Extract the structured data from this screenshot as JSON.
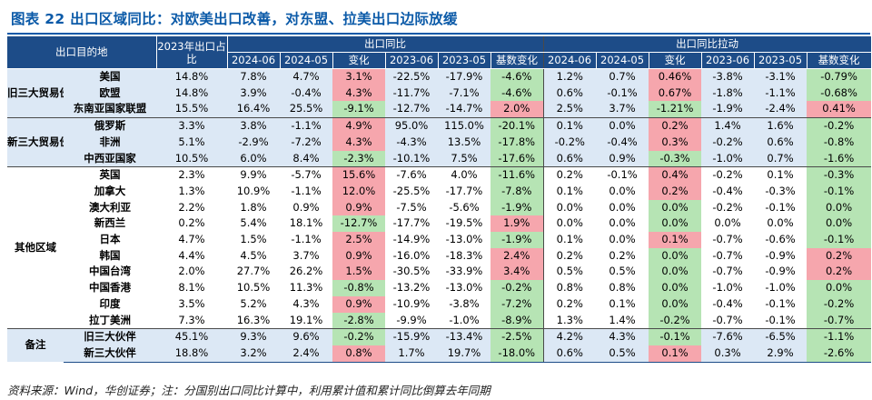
{
  "title": "图表 22  出口区域同比：对欧美出口改善，对东盟、拉美出口边际放缓",
  "colors": {
    "header_bg": "#1d4c88",
    "title": "#0b5aa8",
    "positive_highlight": "#f6a6ad",
    "negative_highlight": "#b6e4b4",
    "section_shade": "#dce8f5"
  },
  "header": {
    "destination": "出口目的地",
    "share_2023": "2023年出口占比",
    "yoy_group": "出口同比",
    "pull_group": "出口同比拉动",
    "sub": [
      "2024-06",
      "2024-05",
      "变化",
      "2023-06",
      "2023-05",
      "基数变化"
    ]
  },
  "groups": [
    {
      "label": "旧三大贸易伙伴",
      "rows": [
        {
          "name": "美国",
          "share": "14.8%",
          "yoy": [
            "7.8%",
            "4.7%",
            "3.1%",
            "-22.5%",
            "-17.9%",
            "-4.6%"
          ],
          "pull": [
            "1.2%",
            "0.7%",
            "0.46%",
            "-3.8%",
            "-3.1%",
            "-0.79%"
          ]
        },
        {
          "name": "欧盟",
          "share": "14.8%",
          "yoy": [
            "3.9%",
            "-0.4%",
            "4.3%",
            "-11.7%",
            "-7.1%",
            "-4.6%"
          ],
          "pull": [
            "0.6%",
            "-0.1%",
            "0.67%",
            "-1.8%",
            "-1.1%",
            "-0.68%"
          ]
        },
        {
          "name": "东南亚国家联盟",
          "share": "15.5%",
          "yoy": [
            "16.4%",
            "25.5%",
            "-9.1%",
            "-12.7%",
            "-14.7%",
            "2.0%"
          ],
          "pull": [
            "2.5%",
            "3.7%",
            "-1.21%",
            "-1.9%",
            "-2.4%",
            "0.41%"
          ]
        }
      ]
    },
    {
      "label": "新三大贸易伙伴",
      "rows": [
        {
          "name": "俄罗斯",
          "share": "3.3%",
          "yoy": [
            "3.8%",
            "-1.1%",
            "4.9%",
            "95.0%",
            "115.0%",
            "-20.1%"
          ],
          "pull": [
            "0.1%",
            "0.0%",
            "0.2%",
            "1.4%",
            "1.6%",
            "-0.2%"
          ]
        },
        {
          "name": "非洲",
          "share": "5.1%",
          "yoy": [
            "-2.9%",
            "-7.2%",
            "4.3%",
            "-4.3%",
            "13.5%",
            "-17.8%"
          ],
          "pull": [
            "-0.2%",
            "-0.4%",
            "0.3%",
            "-0.2%",
            "0.6%",
            "-0.8%"
          ]
        },
        {
          "name": "中西亚国家",
          "share": "10.5%",
          "yoy": [
            "6.0%",
            "8.4%",
            "-2.3%",
            "-10.1%",
            "7.5%",
            "-17.6%"
          ],
          "pull": [
            "0.6%",
            "0.9%",
            "-0.3%",
            "-1.0%",
            "0.7%",
            "-1.6%"
          ]
        }
      ]
    },
    {
      "label": "其他区域",
      "rows": [
        {
          "name": "英国",
          "share": "2.3%",
          "yoy": [
            "9.9%",
            "-5.7%",
            "15.6%",
            "-7.6%",
            "4.0%",
            "-11.6%"
          ],
          "pull": [
            "0.2%",
            "-0.1%",
            "0.4%",
            "-0.2%",
            "0.1%",
            "-0.3%"
          ]
        },
        {
          "name": "加拿大",
          "share": "1.3%",
          "yoy": [
            "10.9%",
            "-1.1%",
            "12.0%",
            "-25.5%",
            "-17.7%",
            "-7.8%"
          ],
          "pull": [
            "0.1%",
            "0.0%",
            "0.2%",
            "-0.4%",
            "-0.3%",
            "-0.1%"
          ]
        },
        {
          "name": "澳大利亚",
          "share": "2.2%",
          "yoy": [
            "1.8%",
            "0.9%",
            "0.9%",
            "-7.5%",
            "-5.6%",
            "-1.9%"
          ],
          "pull": [
            "0.0%",
            "0.0%",
            "0.0%",
            "-0.2%",
            "-0.1%",
            "0.0%"
          ]
        },
        {
          "name": "新西兰",
          "share": "0.2%",
          "yoy": [
            "5.4%",
            "18.1%",
            "-12.7%",
            "-17.7%",
            "-19.5%",
            "1.9%"
          ],
          "pull": [
            "0.0%",
            "0.0%",
            "0.0%",
            "0.0%",
            "0.0%",
            "0.0%"
          ]
        },
        {
          "name": "日本",
          "share": "4.7%",
          "yoy": [
            "1.5%",
            "-1.1%",
            "2.5%",
            "-14.9%",
            "-13.0%",
            "-1.9%"
          ],
          "pull": [
            "0.1%",
            "0.0%",
            "0.1%",
            "-0.7%",
            "-0.6%",
            "-0.1%"
          ]
        },
        {
          "name": "韩国",
          "share": "4.4%",
          "yoy": [
            "4.5%",
            "3.7%",
            "0.9%",
            "-16.0%",
            "-18.3%",
            "2.4%"
          ],
          "pull": [
            "0.2%",
            "0.2%",
            "0.0%",
            "-0.7%",
            "-0.9%",
            "0.2%"
          ]
        },
        {
          "name": "中国台湾",
          "share": "2.0%",
          "yoy": [
            "27.7%",
            "26.2%",
            "1.5%",
            "-30.5%",
            "-33.9%",
            "3.4%"
          ],
          "pull": [
            "0.5%",
            "0.5%",
            "0.0%",
            "-0.7%",
            "-0.9%",
            "0.2%"
          ]
        },
        {
          "name": "中国香港",
          "share": "8.1%",
          "yoy": [
            "10.5%",
            "11.3%",
            "-0.8%",
            "-13.2%",
            "-13.0%",
            "-0.2%"
          ],
          "pull": [
            "0.8%",
            "0.8%",
            "0.0%",
            "-1.0%",
            "-1.0%",
            "0.0%"
          ]
        },
        {
          "name": "印度",
          "share": "3.5%",
          "yoy": [
            "5.2%",
            "4.3%",
            "0.9%",
            "-10.9%",
            "-3.8%",
            "-7.2%"
          ],
          "pull": [
            "0.2%",
            "0.1%",
            "0.0%",
            "-0.4%",
            "-0.1%",
            "-0.2%"
          ]
        },
        {
          "name": "拉丁美洲",
          "share": "7.3%",
          "yoy": [
            "16.3%",
            "19.1%",
            "-2.8%",
            "-9.9%",
            "-1.0%",
            "-8.9%"
          ],
          "pull": [
            "1.3%",
            "1.4%",
            "-0.2%",
            "-0.7%",
            "-0.1%",
            "-0.7%"
          ]
        }
      ]
    },
    {
      "label": "备注",
      "rows": [
        {
          "name": "旧三大伙伴",
          "share": "45.1%",
          "yoy": [
            "9.3%",
            "9.6%",
            "-0.2%",
            "-15.9%",
            "-13.4%",
            "-2.5%"
          ],
          "pull": [
            "4.2%",
            "4.3%",
            "-0.1%",
            "-7.6%",
            "-6.5%",
            "-1.1%"
          ]
        },
        {
          "name": "新三大伙伴",
          "share": "18.8%",
          "yoy": [
            "3.2%",
            "2.4%",
            "0.8%",
            "1.7%",
            "19.7%",
            "-18.0%"
          ],
          "pull": [
            "0.6%",
            "0.5%",
            "0.1%",
            "0.3%",
            "2.9%",
            "-2.6%"
          ]
        }
      ]
    }
  ],
  "footnote": "资料来源：Wind，华创证券；注：分国别出口同比计算中，利用累计值和累计同比倒算去年同期"
}
